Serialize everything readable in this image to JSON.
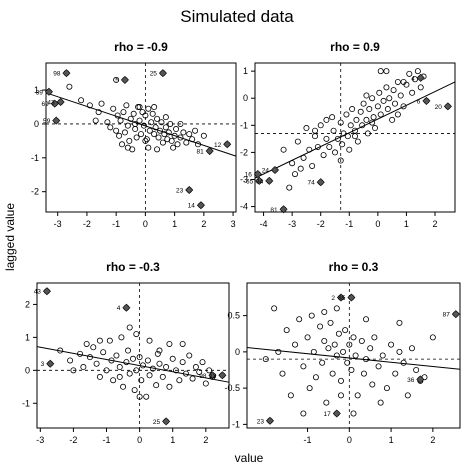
{
  "figure": {
    "title": "Simulated data",
    "xlabel": "value",
    "ylabel": "lagged value"
  },
  "chart_data": [
    {
      "type": "scatter",
      "title": "rho = -0.9",
      "xlim": [
        -3.4,
        3.1
      ],
      "ylim": [
        -2.6,
        1.8
      ],
      "xticks": [
        -3,
        -2,
        -1,
        0,
        1,
        2,
        3
      ],
      "yticks": [
        -2,
        -1,
        0,
        1
      ],
      "vline": 0,
      "hline": 0,
      "fit": [
        [
          -3.4,
          0.92
        ],
        [
          3.1,
          -0.95
        ]
      ],
      "points": [
        [
          -2.6,
          1.1
        ],
        [
          -2.2,
          0.7
        ],
        [
          -1.9,
          0.55
        ],
        [
          -1.6,
          0.35
        ],
        [
          -1.5,
          0.6
        ],
        [
          -1.3,
          0.05
        ],
        [
          -1.2,
          -0.1
        ],
        [
          -1.1,
          0.45
        ],
        [
          -1.0,
          -0.2
        ],
        [
          -0.95,
          0.25
        ],
        [
          -0.9,
          -0.35
        ],
        [
          -0.85,
          0.1
        ],
        [
          -0.8,
          -0.6
        ],
        [
          -0.75,
          0.35
        ],
        [
          -0.7,
          -0.25
        ],
        [
          -0.65,
          0.55
        ],
        [
          -0.6,
          -0.05
        ],
        [
          -0.55,
          -0.5
        ],
        [
          -0.5,
          0.15
        ],
        [
          -0.45,
          -0.75
        ],
        [
          -0.4,
          0.3
        ],
        [
          -0.35,
          -0.15
        ],
        [
          -0.3,
          -0.4
        ],
        [
          -0.25,
          0.5
        ],
        [
          -0.2,
          0.1
        ],
        [
          -0.15,
          -0.3
        ],
        [
          -0.1,
          0.35
        ],
        [
          -0.05,
          -0.05
        ],
        [
          0.0,
          0.25
        ],
        [
          0.05,
          -0.45
        ],
        [
          0.1,
          0.45
        ],
        [
          0.15,
          -0.2
        ],
        [
          0.2,
          0.05
        ],
        [
          0.25,
          0.3
        ],
        [
          0.3,
          -0.3
        ],
        [
          0.35,
          -0.1
        ],
        [
          0.4,
          0.15
        ],
        [
          0.45,
          -0.4
        ],
        [
          0.5,
          -0.2
        ],
        [
          0.55,
          0.05
        ],
        [
          0.6,
          -0.55
        ],
        [
          0.65,
          -0.3
        ],
        [
          0.7,
          -0.1
        ],
        [
          0.75,
          -0.45
        ],
        [
          0.8,
          -0.25
        ],
        [
          0.85,
          0.0
        ],
        [
          0.9,
          -0.5
        ],
        [
          0.95,
          -0.7
        ],
        [
          1.0,
          -0.35
        ],
        [
          1.05,
          -0.15
        ],
        [
          1.1,
          -0.6
        ],
        [
          1.2,
          -0.4
        ],
        [
          1.3,
          -0.25
        ],
        [
          1.4,
          -0.55
        ],
        [
          1.5,
          -0.3
        ],
        [
          1.6,
          -0.45
        ],
        [
          1.7,
          -0.2
        ],
        [
          1.8,
          -0.6
        ],
        [
          -0.2,
          0.5
        ],
        [
          0.3,
          0.5
        ],
        [
          -1.0,
          1.3
        ],
        [
          -0.35,
          0.0
        ],
        [
          0.1,
          -0.7
        ],
        [
          0.7,
          0.2
        ],
        [
          1.2,
          0.0
        ],
        [
          2.0,
          -0.35
        ],
        [
          -1.7,
          0.1
        ],
        [
          0.0,
          -0.5
        ],
        [
          0.4,
          -0.75
        ],
        [
          -0.6,
          -0.7
        ]
      ],
      "labeled": [
        {
          "label": "98",
          "x": -2.7,
          "y": 1.5
        },
        {
          "label": "5",
          "x": -0.7,
          "y": 1.3
        },
        {
          "label": "25",
          "x": 0.6,
          "y": 1.5
        },
        {
          "label": "39",
          "x": -3.3,
          "y": 0.95
        },
        {
          "label": "69",
          "x": -3.1,
          "y": 0.6
        },
        {
          "label": "43",
          "x": -2.9,
          "y": 0.65
        },
        {
          "label": "59",
          "x": -3.05,
          "y": 0.1
        },
        {
          "label": "81",
          "x": 2.2,
          "y": -0.8
        },
        {
          "label": "12",
          "x": 2.8,
          "y": -0.6
        },
        {
          "label": "23",
          "x": 1.5,
          "y": -1.95
        },
        {
          "label": "14",
          "x": 1.9,
          "y": -2.4
        }
      ]
    },
    {
      "type": "scatter",
      "title": "rho = 0.9",
      "xlim": [
        -4.3,
        2.7
      ],
      "ylim": [
        -4.2,
        1.3
      ],
      "xticks": [
        -4,
        -3,
        -2,
        -1,
        0,
        1,
        2
      ],
      "yticks": [
        -4,
        -3,
        -2,
        -1,
        0,
        1
      ],
      "vline": -1.3,
      "hline": -1.3,
      "fit": [
        [
          -4.3,
          -2.95
        ],
        [
          2.7,
          0.6
        ]
      ],
      "points": [
        [
          -3.3,
          -1.9
        ],
        [
          -3.0,
          -2.4
        ],
        [
          -2.8,
          -1.6
        ],
        [
          -2.6,
          -2.2
        ],
        [
          -2.5,
          -1.1
        ],
        [
          -2.4,
          -1.9
        ],
        [
          -2.3,
          -2.5
        ],
        [
          -2.2,
          -1.4
        ],
        [
          -2.1,
          -1.8
        ],
        [
          -2.0,
          -1.0
        ],
        [
          -1.9,
          -2.1
        ],
        [
          -1.8,
          -1.5
        ],
        [
          -1.7,
          -1.8
        ],
        [
          -1.6,
          -0.7
        ],
        [
          -1.55,
          -1.2
        ],
        [
          -1.5,
          -2.0
        ],
        [
          -1.4,
          -1.5
        ],
        [
          -1.3,
          -0.9
        ],
        [
          -1.25,
          -1.7
        ],
        [
          -1.2,
          -1.3
        ],
        [
          -1.1,
          -0.6
        ],
        [
          -1.05,
          -1.4
        ],
        [
          -1.0,
          -1.9
        ],
        [
          -0.95,
          -1.0
        ],
        [
          -0.9,
          -0.4
        ],
        [
          -0.8,
          -1.2
        ],
        [
          -0.75,
          -0.8
        ],
        [
          -0.7,
          -1.6
        ],
        [
          -0.6,
          -0.5
        ],
        [
          -0.55,
          -1.0
        ],
        [
          -0.5,
          -0.2
        ],
        [
          -0.4,
          -0.8
        ],
        [
          -0.35,
          -1.3
        ],
        [
          -0.3,
          -0.4
        ],
        [
          -0.2,
          0.0
        ],
        [
          -0.15,
          -0.7
        ],
        [
          -0.1,
          -1.1
        ],
        [
          0.0,
          -0.3
        ],
        [
          0.05,
          0.2
        ],
        [
          0.1,
          -0.6
        ],
        [
          0.2,
          -0.1
        ],
        [
          0.3,
          0.4
        ],
        [
          0.35,
          -0.4
        ],
        [
          0.4,
          0.0
        ],
        [
          0.5,
          -0.8
        ],
        [
          0.55,
          0.3
        ],
        [
          0.6,
          -0.2
        ],
        [
          0.7,
          0.6
        ],
        [
          0.8,
          0.1
        ],
        [
          0.9,
          -0.3
        ],
        [
          1.0,
          0.5
        ],
        [
          1.1,
          0.9
        ],
        [
          1.2,
          0.2
        ],
        [
          1.3,
          0.7
        ],
        [
          1.4,
          1.0
        ],
        [
          1.5,
          0.4
        ],
        [
          1.6,
          0.8
        ],
        [
          0.1,
          1.0
        ],
        [
          0.3,
          1.0
        ],
        [
          -0.4,
          0.1
        ],
        [
          -3.1,
          -3.3
        ],
        [
          -2.9,
          -2.8
        ],
        [
          -1.8,
          -0.8
        ],
        [
          -2.2,
          -1.2
        ],
        [
          0.7,
          -0.6
        ],
        [
          -0.8,
          -1.4
        ],
        [
          -1.3,
          -2.3
        ],
        [
          -2.7,
          -2.6
        ],
        [
          0.9,
          0.6
        ],
        [
          -0.2,
          -0.9
        ]
      ],
      "labeled": [
        {
          "label": "4",
          "x": 1.5,
          "y": 0.75
        },
        {
          "label": "6",
          "x": 1.7,
          "y": -0.1
        },
        {
          "label": "20",
          "x": 2.45,
          "y": -0.3
        },
        {
          "label": "24",
          "x": -3.6,
          "y": -2.65
        },
        {
          "label": "16",
          "x": -4.2,
          "y": -2.8
        },
        {
          "label": "65",
          "x": -4.15,
          "y": -3.05
        },
        {
          "label": "34",
          "x": -3.8,
          "y": -3.05
        },
        {
          "label": "74",
          "x": -2.0,
          "y": -3.1
        },
        {
          "label": "81",
          "x": -3.3,
          "y": -4.1
        }
      ]
    },
    {
      "type": "scatter",
      "title": "rho = -0.3",
      "xlim": [
        -3.1,
        2.7
      ],
      "ylim": [
        -1.75,
        2.65
      ],
      "xticks": [
        -3,
        -2,
        -1,
        0,
        1,
        2
      ],
      "yticks": [
        -1,
        0,
        1,
        2
      ],
      "vline": 0,
      "hline": 0,
      "fit": [
        [
          -3.1,
          0.72
        ],
        [
          2.7,
          -0.36
        ]
      ],
      "points": [
        [
          -2.4,
          0.6
        ],
        [
          -2.1,
          0.3
        ],
        [
          -1.8,
          0.5
        ],
        [
          -1.7,
          0.1
        ],
        [
          -1.5,
          0.4
        ],
        [
          -1.4,
          0.7
        ],
        [
          -1.3,
          0.2
        ],
        [
          -1.2,
          -0.2
        ],
        [
          -1.1,
          0.55
        ],
        [
          -1.0,
          0.0
        ],
        [
          -0.9,
          0.9
        ],
        [
          -0.85,
          0.3
        ],
        [
          -0.8,
          -0.3
        ],
        [
          -0.7,
          0.45
        ],
        [
          -0.6,
          0.1
        ],
        [
          -0.55,
          1.0
        ],
        [
          -0.5,
          -0.5
        ],
        [
          -0.4,
          0.25
        ],
        [
          -0.35,
          0.6
        ],
        [
          -0.3,
          -0.1
        ],
        [
          -0.2,
          0.35
        ],
        [
          -0.15,
          -0.6
        ],
        [
          -0.1,
          0.0
        ],
        [
          0.0,
          0.4
        ],
        [
          0.05,
          -0.3
        ],
        [
          0.1,
          0.15
        ],
        [
          0.2,
          -0.8
        ],
        [
          0.25,
          0.3
        ],
        [
          0.3,
          -0.15
        ],
        [
          0.4,
          0.05
        ],
        [
          0.5,
          -0.45
        ],
        [
          0.55,
          0.5
        ],
        [
          0.6,
          0.2
        ],
        [
          0.7,
          -0.2
        ],
        [
          0.8,
          0.1
        ],
        [
          0.9,
          -0.5
        ],
        [
          1.0,
          0.35
        ],
        [
          1.1,
          0.0
        ],
        [
          1.2,
          -0.3
        ],
        [
          1.3,
          0.25
        ],
        [
          1.4,
          -0.1
        ],
        [
          1.5,
          0.45
        ],
        [
          1.6,
          -0.25
        ],
        [
          1.7,
          0.1
        ],
        [
          1.8,
          -0.05
        ],
        [
          1.9,
          0.25
        ],
        [
          2.0,
          -0.4
        ],
        [
          2.1,
          0.0
        ],
        [
          -0.3,
          1.3
        ],
        [
          -1.6,
          0.8
        ],
        [
          0.3,
          0.9
        ],
        [
          -0.6,
          -0.2
        ],
        [
          0.9,
          0.8
        ],
        [
          -2.0,
          0.0
        ],
        [
          1.3,
          0.8
        ],
        [
          -0.1,
          1.1
        ],
        [
          0.6,
          0.6
        ],
        [
          -1.2,
          0.9
        ],
        [
          0.0,
          -0.8
        ],
        [
          2.2,
          -0.2
        ]
      ],
      "labeled": [
        {
          "label": "43",
          "x": -2.8,
          "y": 2.4
        },
        {
          "label": "4",
          "x": -0.4,
          "y": 1.9
        },
        {
          "label": "3",
          "x": -2.7,
          "y": 0.2
        },
        {
          "label": "98",
          "x": 2.2,
          "y": -0.15
        },
        {
          "label": "13",
          "x": 2.5,
          "y": -0.15
        },
        {
          "label": "25",
          "x": 0.8,
          "y": -1.55
        }
      ]
    },
    {
      "type": "scatter",
      "title": "rho = 0.3",
      "xlim": [
        -2.45,
        2.65
      ],
      "ylim": [
        -1.05,
        0.95
      ],
      "xticks": [
        -1,
        0,
        1,
        2
      ],
      "yticks": [
        -1.0,
        -0.5,
        0.0,
        0.5
      ],
      "vline": 0,
      "hline": -0.1,
      "fit": [
        [
          -2.45,
          0.06
        ],
        [
          2.65,
          -0.24
        ]
      ],
      "points": [
        [
          -1.8,
          0.6
        ],
        [
          -1.6,
          -0.3
        ],
        [
          -1.5,
          0.3
        ],
        [
          -1.4,
          -0.6
        ],
        [
          -1.3,
          0.1
        ],
        [
          -1.2,
          0.45
        ],
        [
          -1.1,
          -0.2
        ],
        [
          -1.0,
          0.2
        ],
        [
          -0.95,
          -0.5
        ],
        [
          -0.9,
          0.5
        ],
        [
          -0.85,
          0.0
        ],
        [
          -0.8,
          -0.35
        ],
        [
          -0.7,
          0.35
        ],
        [
          -0.65,
          -0.15
        ],
        [
          -0.6,
          0.15
        ],
        [
          -0.55,
          -0.7
        ],
        [
          -0.5,
          0.05
        ],
        [
          -0.45,
          0.4
        ],
        [
          -0.4,
          -0.3
        ],
        [
          -0.35,
          0.1
        ],
        [
          -0.3,
          -0.05
        ],
        [
          -0.25,
          0.25
        ],
        [
          -0.2,
          -0.4
        ],
        [
          -0.15,
          0.0
        ],
        [
          -0.1,
          0.3
        ],
        [
          -0.05,
          -0.15
        ],
        [
          0.0,
          0.1
        ],
        [
          0.05,
          -0.25
        ],
        [
          0.1,
          0.2
        ],
        [
          0.15,
          -0.05
        ],
        [
          0.2,
          -0.6
        ],
        [
          0.3,
          0.15
        ],
        [
          0.35,
          -0.3
        ],
        [
          0.4,
          -0.1
        ],
        [
          0.5,
          0.05
        ],
        [
          0.55,
          -0.45
        ],
        [
          0.6,
          0.2
        ],
        [
          0.7,
          -0.2
        ],
        [
          0.8,
          -0.05
        ],
        [
          0.9,
          -0.5
        ],
        [
          1.0,
          0.1
        ],
        [
          1.1,
          -0.3
        ],
        [
          1.2,
          0.0
        ],
        [
          1.3,
          -0.15
        ],
        [
          1.4,
          -0.6
        ],
        [
          1.5,
          0.05
        ],
        [
          1.6,
          -0.25
        ],
        [
          1.7,
          -0.4
        ],
        [
          2.0,
          0.2
        ],
        [
          -2.0,
          -0.1
        ],
        [
          -0.6,
          0.55
        ],
        [
          0.4,
          0.45
        ],
        [
          -1.1,
          -0.85
        ],
        [
          0.75,
          -0.7
        ],
        [
          -0.3,
          0.6
        ],
        [
          1.2,
          0.4
        ],
        [
          -1.7,
          0.0
        ],
        [
          0.1,
          -0.85
        ],
        [
          1.8,
          -0.35
        ],
        [
          -0.2,
          -0.6
        ]
      ],
      "labeled": [
        {
          "label": "2",
          "x": -0.2,
          "y": 0.75
        },
        {
          "label": "85",
          "x": 0.05,
          "y": 0.75
        },
        {
          "label": "87",
          "x": 2.55,
          "y": 0.52
        },
        {
          "label": "36",
          "x": 1.7,
          "y": -0.38
        },
        {
          "label": "17",
          "x": -0.3,
          "y": -0.85
        },
        {
          "label": "23",
          "x": -1.9,
          "y": -0.95
        }
      ]
    }
  ]
}
